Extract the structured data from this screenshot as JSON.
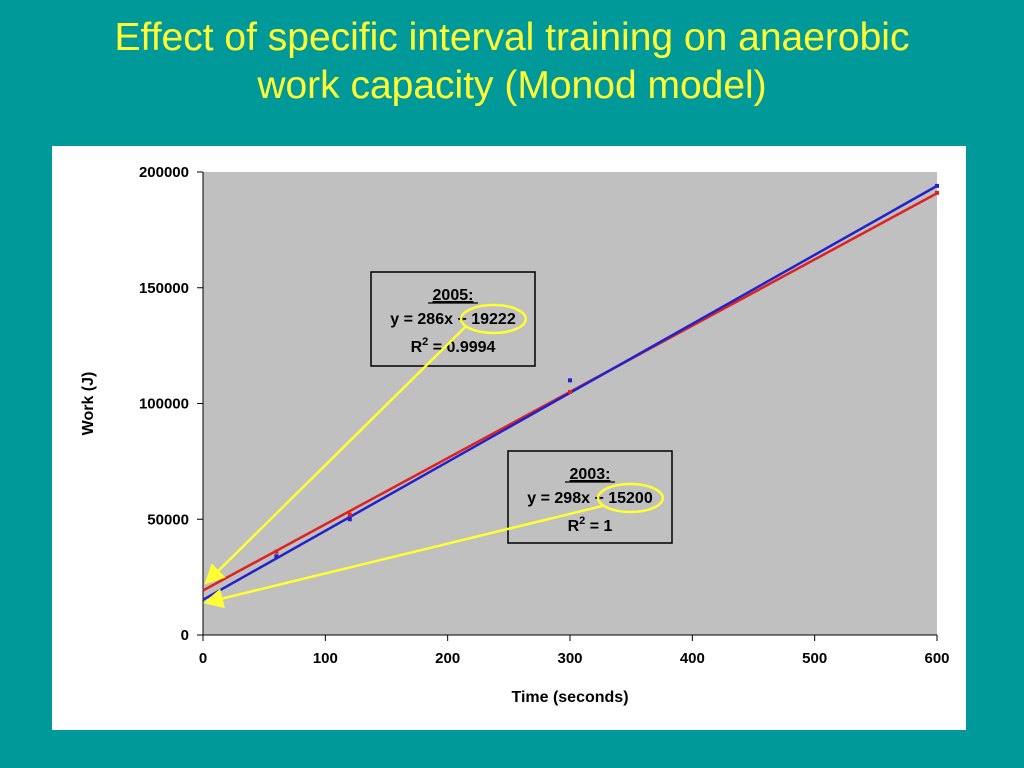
{
  "slide": {
    "title_line1": "Effect of specific interval training on anaerobic",
    "title_line2": "work capacity (Monod model)",
    "background_color": "#009999",
    "title_color": "#ffff33"
  },
  "chart_data": {
    "type": "scatter",
    "xlabel": "Time (seconds)",
    "ylabel": "Work (J)",
    "xlim": [
      0,
      600
    ],
    "ylim": [
      0,
      200000
    ],
    "x_ticks": [
      0,
      100,
      200,
      300,
      400,
      500,
      600
    ],
    "y_ticks": [
      0,
      50000,
      100000,
      150000,
      200000
    ],
    "plot_area_color": "#c0c0c0",
    "grid": false,
    "series": [
      {
        "name": "2005",
        "color": "#dd2222",
        "points": [
          [
            60,
            36000
          ],
          [
            120,
            52000
          ],
          [
            300,
            105000
          ],
          [
            600,
            191000
          ]
        ],
        "trendline": {
          "slope": 286,
          "intercept": 19222
        }
      },
      {
        "name": "2003",
        "color": "#2222cc",
        "points": [
          [
            60,
            34000
          ],
          [
            120,
            50000
          ],
          [
            300,
            110000
          ],
          [
            600,
            194000
          ]
        ],
        "trendline": {
          "slope": 298,
          "intercept": 15200
        }
      }
    ],
    "annotations": [
      {
        "id": "2005",
        "year": "2005:",
        "equation_prefix": "y = 286x + ",
        "intercept_text": "19222",
        "r2_label": "R",
        "r2_sup": "2",
        "r2_value": " = 0.9994",
        "arrow_color": "#ffff33"
      },
      {
        "id": "2003",
        "year": "2003:",
        "equation_prefix": "y = 298x + ",
        "intercept_text": "15200",
        "r2_label": "R",
        "r2_sup": "2",
        "r2_value": " = 1",
        "arrow_color": "#ffff33"
      }
    ]
  }
}
